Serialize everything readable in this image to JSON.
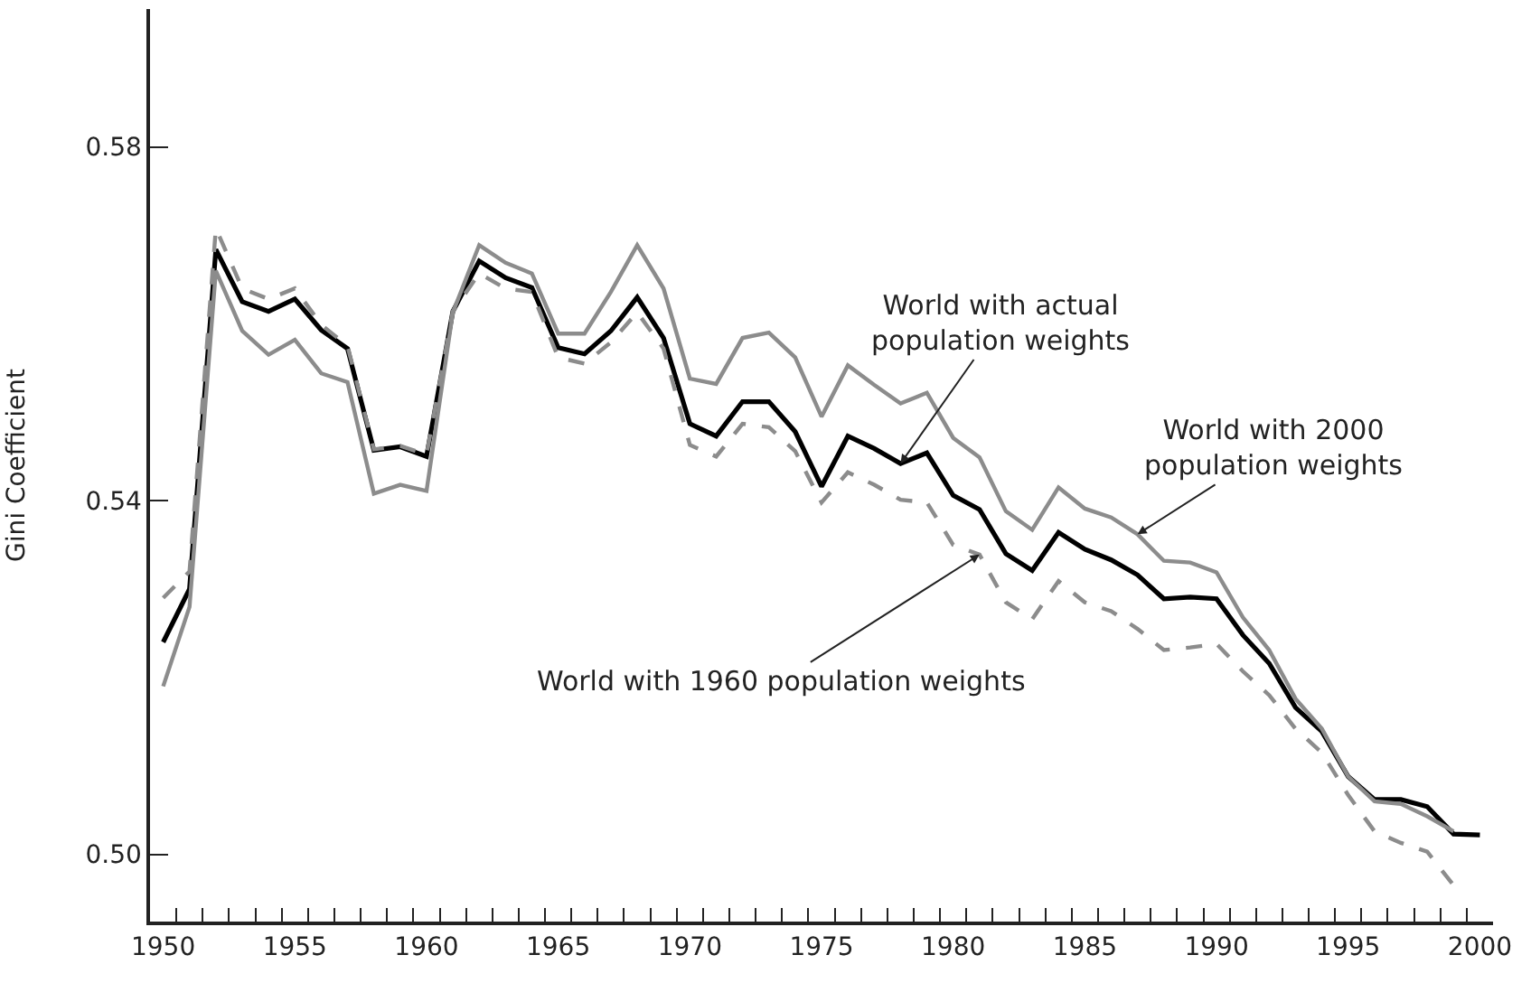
{
  "chart_data": {
    "type": "line",
    "ylabel": "Gini Coefficient",
    "x": [
      1950,
      1951,
      1952,
      1953,
      1954,
      1955,
      1956,
      1957,
      1958,
      1959,
      1960,
      1961,
      1962,
      1963,
      1964,
      1965,
      1966,
      1967,
      1968,
      1969,
      1970,
      1971,
      1972,
      1973,
      1974,
      1975,
      1976,
      1977,
      1978,
      1979,
      1980,
      1981,
      1982,
      1983,
      1984,
      1985,
      1986,
      1987,
      1988,
      1989,
      1990,
      1991,
      1992,
      1993,
      1994,
      1995,
      1996,
      1997,
      1998,
      1999,
      2000
    ],
    "series": [
      {
        "color": "#000000",
        "line_style": "solid",
        "values": [
          0.524,
          0.53,
          0.5684,
          0.5625,
          0.5614,
          0.5628,
          0.5593,
          0.5572,
          0.5457,
          0.5461,
          0.545,
          0.5614,
          0.5671,
          0.5652,
          0.5641,
          0.5573,
          0.5566,
          0.5592,
          0.563,
          0.5584,
          0.5487,
          0.5473,
          0.5512,
          0.5512,
          0.5478,
          0.5416,
          0.5473,
          0.5459,
          0.5442,
          0.5454,
          0.5406,
          0.539,
          0.534,
          0.5321,
          0.5364,
          0.5345,
          0.5333,
          0.5316,
          0.5289,
          0.5291,
          0.5289,
          0.5248,
          0.5216,
          0.5166,
          0.5139,
          0.5088,
          0.5062,
          0.5062,
          0.5054,
          0.5023,
          0.5022
        ]
      },
      {
        "color": "#8c8c8c",
        "line_style": "solid",
        "values": [
          0.519,
          0.528,
          0.566,
          0.5592,
          0.5565,
          0.5582,
          0.5544,
          0.5534,
          0.5408,
          0.5418,
          0.5411,
          0.5613,
          0.5689,
          0.5669,
          0.5657,
          0.5589,
          0.5589,
          0.5636,
          0.5689,
          0.564,
          0.5538,
          0.5532,
          0.5584,
          0.559,
          0.5562,
          0.5495,
          0.5553,
          0.5531,
          0.551,
          0.5522,
          0.5471,
          0.5449,
          0.5388,
          0.5367,
          0.5415,
          0.5391,
          0.5381,
          0.5362,
          0.5332,
          0.533,
          0.5319,
          0.5268,
          0.5231,
          0.5176,
          0.5142,
          0.5088,
          0.506,
          0.5057,
          0.5043,
          0.5026,
          null
        ]
      },
      {
        "color": "#8c8c8c",
        "line_style": "dashed",
        "values": [
          0.529,
          0.532,
          0.5708,
          0.564,
          0.5628,
          0.564,
          0.5599,
          0.5575,
          0.5458,
          0.5462,
          0.5452,
          0.5614,
          0.5657,
          0.564,
          0.5636,
          0.5562,
          0.5555,
          0.5579,
          0.5613,
          0.5572,
          0.5463,
          0.545,
          0.5487,
          0.5483,
          0.5456,
          0.5398,
          0.5432,
          0.5418,
          0.5401,
          0.5398,
          0.535,
          0.5339,
          0.5285,
          0.5266,
          0.5309,
          0.5285,
          0.5275,
          0.5255,
          0.5231,
          0.5234,
          0.5238,
          0.5207,
          0.518,
          0.5142,
          0.5115,
          0.5067,
          0.5026,
          0.5013,
          0.5003,
          0.4965,
          null
        ]
      }
    ],
    "xlim": [
      1949.5,
      2000.5
    ],
    "xticks": [
      1950,
      1955,
      1960,
      1965,
      1970,
      1975,
      1980,
      1985,
      1990,
      1995,
      2000,
      {
        "value": 1950.5,
        "label": null
      },
      {
        "value": 1951.5,
        "label": null
      },
      {
        "value": 1952.5,
        "label": null
      },
      {
        "value": 1953.5,
        "label": null
      },
      {
        "value": 1954.5,
        "label": null
      },
      {
        "value": 1955.5,
        "label": null
      },
      {
        "value": 1956.5,
        "label": null
      },
      {
        "value": 1957.5,
        "label": null
      },
      {
        "value": 1958.5,
        "label": null
      },
      {
        "value": 1959.5,
        "label": null
      },
      {
        "value": 1960.5,
        "label": null
      },
      {
        "value": 1961.5,
        "label": null
      },
      {
        "value": 1962.5,
        "label": null
      },
      {
        "value": 1963.5,
        "label": null
      },
      {
        "value": 1964.5,
        "label": null
      },
      {
        "value": 1965.5,
        "label": null
      },
      {
        "value": 1966.5,
        "label": null
      },
      {
        "value": 1967.5,
        "label": null
      },
      {
        "value": 1968.5,
        "label": null
      },
      {
        "value": 1969.5,
        "label": null
      },
      {
        "value": 1970.5,
        "label": null
      },
      {
        "value": 1971.5,
        "label": null
      },
      {
        "value": 1972.5,
        "label": null
      },
      {
        "value": 1973.5,
        "label": null
      },
      {
        "value": 1974.5,
        "label": null
      },
      {
        "value": 1975.5,
        "label": null
      },
      {
        "value": 1976.5,
        "label": null
      },
      {
        "value": 1977.5,
        "label": null
      },
      {
        "value": 1978.5,
        "label": null
      },
      {
        "value": 1979.5,
        "label": null
      },
      {
        "value": 1980.5,
        "label": null
      },
      {
        "value": 1981.5,
        "label": null
      },
      {
        "value": 1982.5,
        "label": null
      },
      {
        "value": 1983.5,
        "label": null
      },
      {
        "value": 1984.5,
        "label": null
      },
      {
        "value": 1985.5,
        "label": null
      },
      {
        "value": 1986.5,
        "label": null
      },
      {
        "value": 1987.5,
        "label": null
      },
      {
        "value": 1988.5,
        "label": null
      },
      {
        "value": 1989.5,
        "label": null
      },
      {
        "value": 1990.5,
        "label": null
      },
      {
        "value": 1991.5,
        "label": null
      },
      {
        "value": 1992.5,
        "label": null
      },
      {
        "value": 1993.5,
        "label": null
      },
      {
        "value": 1994.5,
        "label": null
      },
      {
        "value": 1995.5,
        "label": null
      },
      {
        "value": 1996.5,
        "label": null
      },
      {
        "value": 1997.5,
        "label": null
      },
      {
        "value": 1998.5,
        "label": null
      },
      {
        "value": 1999.5,
        "label": null
      }
    ],
    "ylim": [
      0.4924,
      0.5956
    ],
    "yticks": [
      {
        "value": 0.5,
        "label": "0.50"
      },
      {
        "value": 0.54,
        "label": "0.54"
      },
      {
        "value": 0.58,
        "label": "0.58"
      }
    ],
    "annotations": [
      {
        "text": "World with actual\npopulation weights",
        "x": 1978,
        "y": 0.5442
      },
      {
        "text": "World with 2000\npopulation weights",
        "x": 1987,
        "y": 0.5362
      },
      {
        "text": "World with 1960 population weights",
        "x": 1981,
        "y": 0.5339
      }
    ]
  }
}
